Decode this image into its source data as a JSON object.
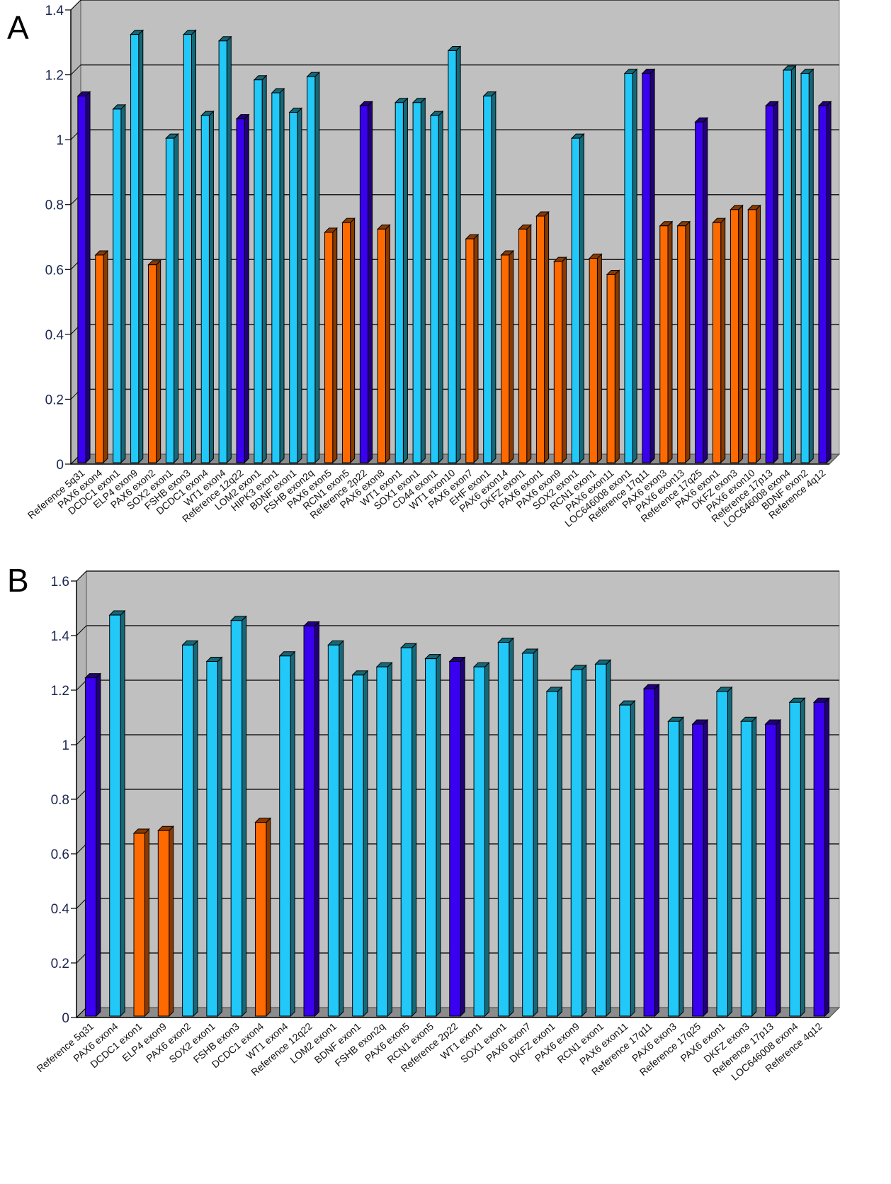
{
  "chart_data": [
    {
      "panel": "A",
      "type": "bar",
      "title": "",
      "xlabel": "",
      "ylabel": "",
      "ylim": [
        0,
        1.4
      ],
      "yticks": [
        "0",
        "0.2",
        "0.4",
        "0.6",
        "0.8",
        "1",
        "1.2",
        "1.4"
      ],
      "grid": true,
      "legend": "none",
      "categories": [
        "Reference 5q31",
        "PAX6 exon4",
        "DCDC1 exon1",
        "ELP4 exon9",
        "PAX6 exon2",
        "SOX2 exon1",
        "FSHB exon3",
        "DCDC1 exon4",
        "WT1 exon4",
        "Reference 12q22",
        "LOM2 exon1",
        "HIPK3 exon1",
        "BDNF exon1",
        "FSHB exon2q",
        "PAX6 exon5",
        "RCN1 exon5",
        "Reference 2p22",
        "PAX6 exon8",
        "WT1 exon1",
        "SOX1 exon1",
        "CD44 exon1",
        "WT1 exon10",
        "PAX6 exon7",
        "EHF exon1",
        "PAX6 exon14",
        "DKFZ exon1",
        "PAX6 exon1",
        "PAX6 exon9",
        "SOX2 exon1",
        "RCN1 exon1",
        "PAX6 exon11",
        "LOC646008 exon1",
        "Reference 17q11",
        "PAX6 exon3",
        "PAX6 exon13",
        "Reference 17q25",
        "PAX6 exon1",
        "DKFZ exon3",
        "PAX6 exon10",
        "Reference 17p13",
        "LOC646008 exon4",
        "BDNF exon2",
        "Reference 4q12"
      ],
      "values": [
        1.13,
        0.64,
        1.09,
        1.32,
        0.61,
        1.0,
        1.32,
        1.07,
        1.3,
        1.06,
        1.18,
        1.14,
        1.08,
        1.19,
        0.71,
        0.74,
        1.1,
        0.72,
        1.11,
        1.11,
        1.07,
        1.27,
        0.69,
        1.13,
        0.64,
        0.72,
        0.76,
        0.62,
        1.0,
        0.63,
        0.58,
        1.2,
        1.2,
        0.73,
        0.73,
        1.05,
        0.74,
        0.78,
        0.78,
        1.1,
        1.21,
        1.2,
        1.1
      ],
      "bar_types": [
        "reference",
        "deleted",
        "normal",
        "normal",
        "deleted",
        "normal",
        "normal",
        "normal",
        "normal",
        "reference",
        "normal",
        "normal",
        "normal",
        "normal",
        "deleted",
        "deleted",
        "reference",
        "deleted",
        "normal",
        "normal",
        "normal",
        "normal",
        "deleted",
        "normal",
        "deleted",
        "deleted",
        "deleted",
        "deleted",
        "normal",
        "deleted",
        "deleted",
        "normal",
        "reference",
        "deleted",
        "deleted",
        "reference",
        "deleted",
        "deleted",
        "deleted",
        "reference",
        "normal",
        "normal",
        "reference"
      ]
    },
    {
      "panel": "B",
      "type": "bar",
      "title": "",
      "xlabel": "",
      "ylabel": "",
      "ylim": [
        0,
        1.6
      ],
      "yticks": [
        "0",
        "0.2",
        "0.4",
        "0.6",
        "0.8",
        "1",
        "1.2",
        "1.4",
        "1.6"
      ],
      "grid": true,
      "legend": "none",
      "categories": [
        "Reference 5q31",
        "PAX6 exon4",
        "DCDC1 exon1",
        "ELP4 exon9",
        "PAX6 exon2",
        "SOX2 exon1",
        "FSHB exon3",
        "DCDC1 exon4",
        "WT1 exon4",
        "Reference 12q22",
        "LOM2 exon1",
        "BDNF exon1",
        "FSHB exon2q",
        "PAX6 exon5",
        "RCN1 exon5",
        "Reference 2p22",
        "WT1 exon1",
        "SOX1 exon1",
        "PAX6 exon7",
        "DKFZ exon1",
        "PAX6 exon9",
        "RCN1 exon1",
        "PAX6 exon11",
        "Reference 17q11",
        "PAX6 exon3",
        "Reference 17q25",
        "PAX6 exon1",
        "DKFZ exon3",
        "Reference 17p13",
        "LOC646008 exon4",
        "Reference 4q12"
      ],
      "values": [
        1.24,
        1.47,
        0.67,
        0.68,
        1.36,
        1.3,
        1.45,
        0.71,
        1.32,
        1.43,
        1.36,
        1.25,
        1.28,
        1.35,
        1.31,
        1.3,
        1.28,
        1.37,
        1.33,
        1.19,
        1.27,
        1.29,
        1.14,
        1.2,
        1.08,
        1.07,
        1.19,
        1.08,
        1.07,
        1.15,
        1.15
      ],
      "bar_types": [
        "reference",
        "normal",
        "deleted",
        "deleted",
        "normal",
        "normal",
        "normal",
        "deleted",
        "normal",
        "reference",
        "normal",
        "normal",
        "normal",
        "normal",
        "normal",
        "reference",
        "normal",
        "normal",
        "normal",
        "normal",
        "normal",
        "normal",
        "normal",
        "reference",
        "normal",
        "reference",
        "normal",
        "normal",
        "reference",
        "normal",
        "reference"
      ]
    }
  ],
  "colors": {
    "reference": "#3a00f0",
    "reference_side": "#22007a",
    "normal": "#22c8f8",
    "normal_side": "#156878",
    "deleted": "#ff6a00",
    "deleted_side": "#8a3a00",
    "plot_bg": "#c0c0c0",
    "floor": "#8c8c8c",
    "grid": "#1e1e1e"
  }
}
